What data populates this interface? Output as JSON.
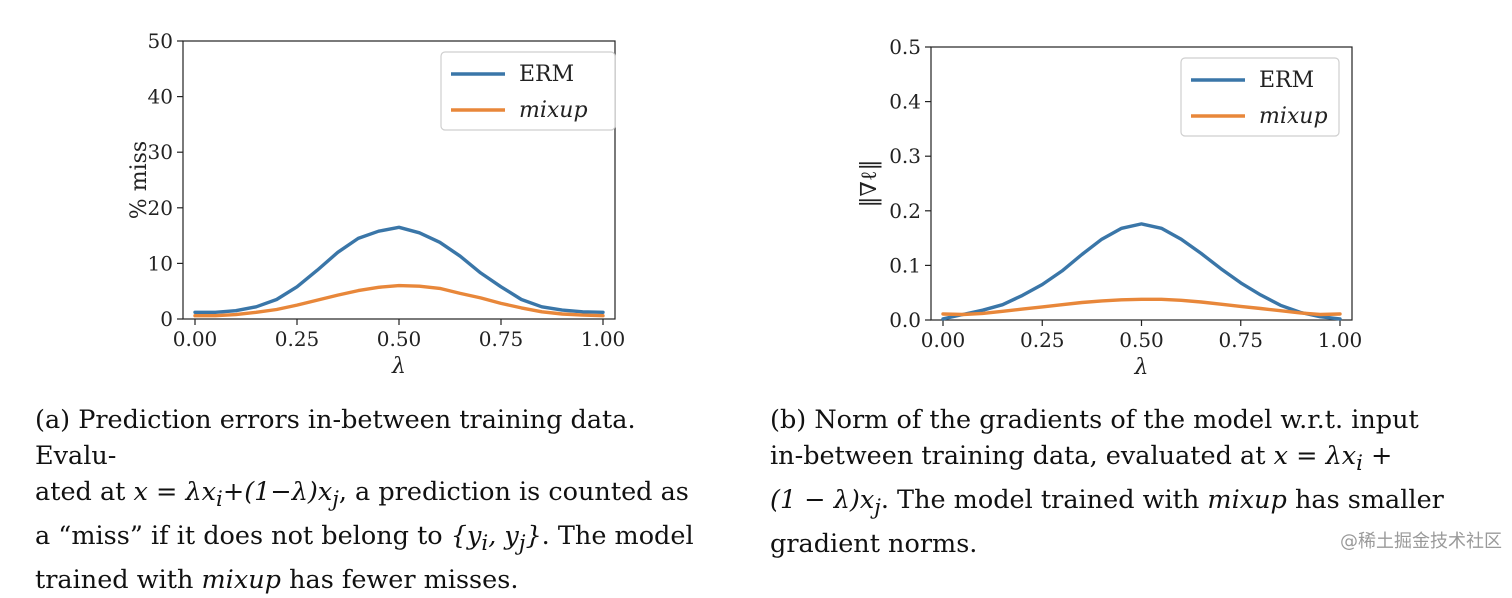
{
  "chart_data": [
    {
      "type": "line",
      "title": "",
      "xlabel": "λ",
      "ylabel": "% miss",
      "xlim": [
        0,
        1
      ],
      "ylim": [
        0,
        50
      ],
      "xticks": [
        0,
        0.25,
        0.5,
        0.75,
        1
      ],
      "xtick_labels": [
        "0.00",
        "0.25",
        "0.50",
        "0.75",
        "1.00"
      ],
      "yticks": [
        0,
        10,
        20,
        30,
        40,
        50
      ],
      "ytick_labels": [
        "0",
        "10",
        "20",
        "30",
        "40",
        "50"
      ],
      "legend": "top-right",
      "grid": false,
      "x": [
        0,
        0.05,
        0.1,
        0.15,
        0.2,
        0.25,
        0.3,
        0.35,
        0.4,
        0.45,
        0.5,
        0.55,
        0.6,
        0.65,
        0.7,
        0.75,
        0.8,
        0.85,
        0.9,
        0.95,
        1
      ],
      "series": [
        {
          "name": "ERM",
          "color": "#3a76a8",
          "values": [
            1.2,
            1.2,
            1.5,
            2.2,
            3.5,
            5.8,
            8.8,
            12.0,
            14.5,
            15.8,
            16.5,
            15.5,
            13.8,
            11.3,
            8.3,
            5.8,
            3.5,
            2.2,
            1.6,
            1.3,
            1.2
          ]
        },
        {
          "name": "mixup",
          "color": "#e8873a",
          "italic": true,
          "values": [
            0.6,
            0.6,
            0.8,
            1.2,
            1.7,
            2.5,
            3.4,
            4.3,
            5.1,
            5.7,
            6.0,
            5.9,
            5.5,
            4.6,
            3.8,
            2.8,
            2.0,
            1.3,
            0.9,
            0.7,
            0.6
          ]
        }
      ]
    },
    {
      "type": "line",
      "title": "",
      "xlabel": "λ",
      "ylabel": "‖∇ℓ‖",
      "xlim": [
        0,
        1
      ],
      "ylim": [
        0,
        0.5
      ],
      "xticks": [
        0,
        0.25,
        0.5,
        0.75,
        1
      ],
      "xtick_labels": [
        "0.00",
        "0.25",
        "0.50",
        "0.75",
        "1.00"
      ],
      "yticks": [
        0,
        0.1,
        0.2,
        0.3,
        0.4,
        0.5
      ],
      "ytick_labels": [
        "0.0",
        "0.1",
        "0.2",
        "0.3",
        "0.4",
        "0.5"
      ],
      "legend": "top-right",
      "grid": false,
      "x": [
        0,
        0.05,
        0.1,
        0.15,
        0.2,
        0.25,
        0.3,
        0.35,
        0.4,
        0.45,
        0.5,
        0.55,
        0.6,
        0.65,
        0.7,
        0.75,
        0.8,
        0.85,
        0.9,
        0.95,
        1
      ],
      "series": [
        {
          "name": "ERM",
          "color": "#3a76a8",
          "values": [
            0.002,
            0.01,
            0.018,
            0.028,
            0.045,
            0.065,
            0.09,
            0.12,
            0.148,
            0.168,
            0.176,
            0.168,
            0.148,
            0.122,
            0.094,
            0.068,
            0.046,
            0.027,
            0.014,
            0.006,
            0.002
          ]
        },
        {
          "name": "mixup",
          "color": "#e8873a",
          "italic": true,
          "values": [
            0.011,
            0.01,
            0.012,
            0.016,
            0.02,
            0.024,
            0.028,
            0.032,
            0.035,
            0.037,
            0.038,
            0.038,
            0.036,
            0.033,
            0.029,
            0.025,
            0.021,
            0.017,
            0.013,
            0.01,
            0.011
          ]
        }
      ]
    }
  ],
  "captions": {
    "a": {
      "l1": "(a) Prediction errors in-between training data. Evalu-",
      "l2_a": "ated at ",
      "l2_math": "x = λx",
      "l2_sub_i": "i",
      "l2_math2": "+(1−λ)x",
      "l2_sub_j": "j",
      "l2_b": ", a prediction is counted as",
      "l3_a": "a “miss” if it does not belong to ",
      "l3_math": "{y",
      "l3_sub_i": "i",
      "l3_math2": ", y",
      "l3_sub_j": "j",
      "l3_math3": "}",
      "l3_b": ". The model",
      "l4_a": "trained with ",
      "l4_em": "mixup",
      "l4_b": " has fewer misses."
    },
    "b": {
      "l1": "(b) Norm of the gradients of the model w.r.t. input",
      "l2_a": "in-between training data, evaluated at ",
      "l2_math": "x = λx",
      "l2_sub_i": "i",
      "l2_math2": " +",
      "l3_math": "(1 − λ)x",
      "l3_sub_j": "j",
      "l3_a": ". The model trained with ",
      "l3_em": "mixup",
      "l3_b": " has smaller",
      "l4": "gradient norms."
    }
  },
  "watermark": "@稀土掘金技术社区"
}
